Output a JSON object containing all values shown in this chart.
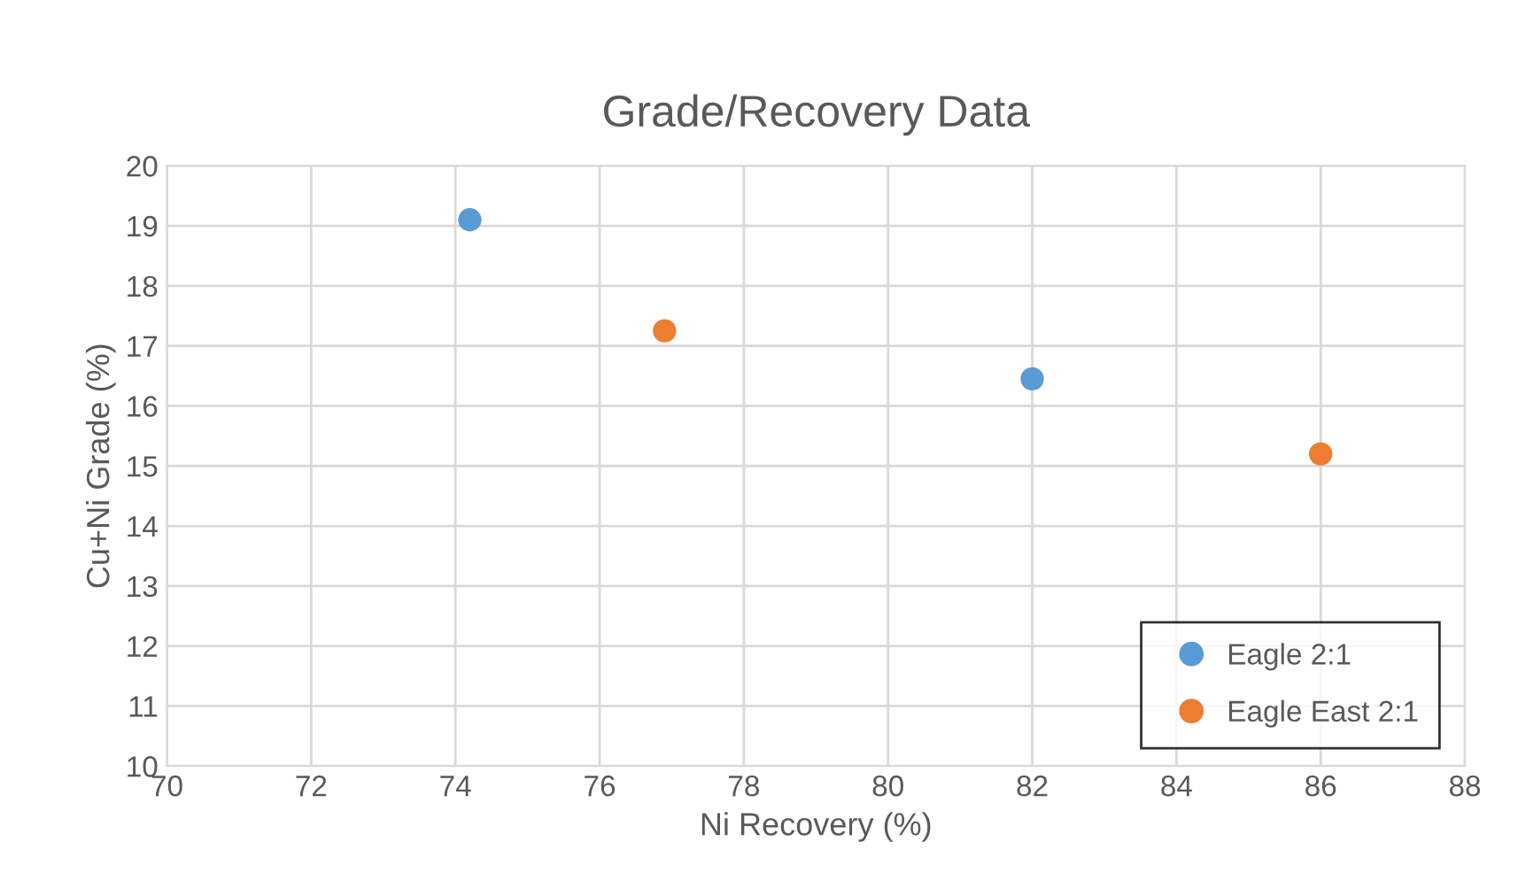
{
  "chart_data": {
    "type": "scatter",
    "title": "Grade/Recovery Data",
    "xlabel": "Ni Recovery (%)",
    "ylabel": "Cu+Ni Grade (%)",
    "series": [
      {
        "name": "Eagle 2:1",
        "color": "#5b9bd5",
        "x": [
          74.2,
          82.0
        ],
        "values": [
          19.1,
          16.45
        ]
      },
      {
        "name": "Eagle East 2:1",
        "color": "#ed7d31",
        "x": [
          76.9,
          86.0
        ],
        "values": [
          17.25,
          15.2
        ]
      }
    ],
    "xlim": [
      70,
      88
    ],
    "xticks": [
      70,
      72,
      74,
      76,
      78,
      80,
      82,
      84,
      86,
      88
    ],
    "ylim": [
      10,
      20
    ],
    "yticks": [
      10,
      11,
      12,
      13,
      14,
      15,
      16,
      17,
      18,
      19,
      20
    ],
    "grid": true,
    "legend": "bottom right",
    "marker": "circle"
  }
}
